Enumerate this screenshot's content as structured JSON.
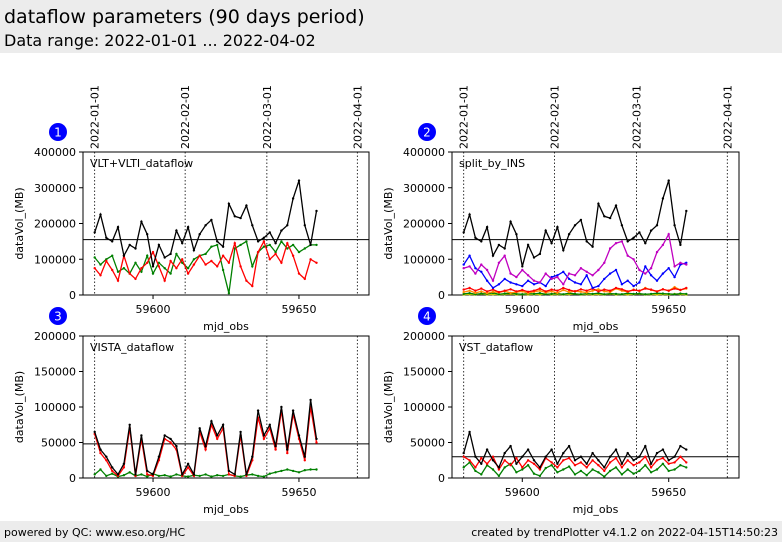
{
  "header": {
    "title": "dataflow parameters (90 days period)",
    "subtitle": "Data range: 2022-01-01 ... 2022-04-02"
  },
  "footer": {
    "left": "powered by QC: www.eso.org/HC",
    "right": "created by trendPlotter v4.1.2 on 2022-04-15T14:50:23"
  },
  "colors": {
    "header_bg": "#ececec",
    "badge": "#0000ff",
    "series_black": "#000000",
    "series_red": "#ff0000",
    "series_green": "#008000",
    "series_blue": "#0000ff",
    "series_magenta": "#c000c0",
    "series_orange": "#ff8c00",
    "series_yellow": "#c8c800"
  },
  "chart_data": [
    {
      "type": "line",
      "panel": "1",
      "label": "VLT+VLTI_dataflow",
      "xlabel": "mjd_obs",
      "ylabel": "dataVol_(MB)",
      "xlim": [
        59576,
        59674
      ],
      "ylim": [
        0,
        400000
      ],
      "xticks": [
        59600,
        59650
      ],
      "yticks": [
        0,
        100000,
        200000,
        300000,
        400000
      ],
      "date_markers": [
        {
          "label": "2022-01-01",
          "x": 59580
        },
        {
          "label": "2022-02-01",
          "x": 59611
        },
        {
          "label": "2022-03-01",
          "x": 59639
        },
        {
          "label": "2022-04-01",
          "x": 59670
        }
      ],
      "reference_line": 155000,
      "series": [
        {
          "color": "#000000",
          "x_start": 59580,
          "step": 2,
          "values": [
            175000,
            225000,
            160000,
            150000,
            190000,
            110000,
            140000,
            130000,
            205000,
            170000,
            80000,
            140000,
            105000,
            115000,
            180000,
            145000,
            190000,
            125000,
            170000,
            195000,
            210000,
            150000,
            135000,
            255000,
            220000,
            215000,
            250000,
            195000,
            150000,
            160000,
            175000,
            145000,
            180000,
            195000,
            270000,
            320000,
            195000,
            140000,
            235000
          ]
        },
        {
          "color": "#ff0000",
          "x_start": 59580,
          "step": 2,
          "values": [
            75000,
            55000,
            95000,
            70000,
            40000,
            110000,
            60000,
            45000,
            75000,
            90000,
            120000,
            80000,
            40000,
            95000,
            75000,
            100000,
            60000,
            85000,
            110000,
            85000,
            95000,
            80000,
            110000,
            90000,
            145000,
            80000,
            40000,
            25000,
            120000,
            150000,
            100000,
            115000,
            90000,
            145000,
            110000,
            60000,
            45000,
            100000,
            90000
          ]
        },
        {
          "color": "#008000",
          "x_start": 59580,
          "step": 2,
          "values": [
            105000,
            85000,
            100000,
            110000,
            65000,
            75000,
            60000,
            90000,
            65000,
            110000,
            60000,
            90000,
            75000,
            60000,
            115000,
            90000,
            75000,
            100000,
            110000,
            115000,
            135000,
            140000,
            70000,
            5000,
            130000,
            140000,
            150000,
            80000,
            120000,
            135000,
            140000,
            120000,
            150000,
            130000,
            140000,
            120000,
            130000,
            140000,
            140000
          ]
        }
      ]
    },
    {
      "type": "line",
      "panel": "2",
      "label": "split_by_INS",
      "xlabel": "mjd_obs",
      "ylabel": "dataVol_(MB)",
      "xlim": [
        59576,
        59674
      ],
      "ylim": [
        0,
        400000
      ],
      "xticks": [
        59600,
        59650
      ],
      "yticks": [
        0,
        100000,
        200000,
        300000,
        400000
      ],
      "date_markers": [
        {
          "label": "2022-01-01",
          "x": 59580
        },
        {
          "label": "2022-02-01",
          "x": 59611
        },
        {
          "label": "2022-03-01",
          "x": 59639
        },
        {
          "label": "2022-04-01",
          "x": 59670
        }
      ],
      "reference_line": 155000,
      "series": [
        {
          "color": "#000000",
          "x_start": 59580,
          "step": 2,
          "values": [
            175000,
            225000,
            160000,
            150000,
            190000,
            110000,
            140000,
            130000,
            205000,
            170000,
            80000,
            140000,
            105000,
            115000,
            180000,
            145000,
            190000,
            125000,
            170000,
            195000,
            210000,
            150000,
            135000,
            255000,
            220000,
            215000,
            250000,
            195000,
            150000,
            160000,
            175000,
            145000,
            180000,
            195000,
            270000,
            320000,
            195000,
            140000,
            235000
          ]
        },
        {
          "color": "#c000c0",
          "x_start": 59580,
          "step": 2,
          "values": [
            75000,
            80000,
            60000,
            85000,
            70000,
            40000,
            90000,
            110000,
            60000,
            50000,
            70000,
            55000,
            40000,
            35000,
            60000,
            45000,
            50000,
            30000,
            60000,
            55000,
            75000,
            65000,
            55000,
            70000,
            90000,
            130000,
            145000,
            150000,
            110000,
            100000,
            70000,
            60000,
            75000,
            120000,
            140000,
            170000,
            80000,
            90000,
            85000
          ]
        },
        {
          "color": "#0000ff",
          "x_start": 59580,
          "step": 2,
          "values": [
            85000,
            110000,
            75000,
            65000,
            40000,
            20000,
            30000,
            45000,
            35000,
            30000,
            25000,
            40000,
            30000,
            35000,
            25000,
            50000,
            55000,
            65000,
            45000,
            35000,
            30000,
            55000,
            20000,
            25000,
            45000,
            60000,
            70000,
            30000,
            40000,
            25000,
            35000,
            80000,
            55000,
            40000,
            60000,
            75000,
            50000,
            85000,
            90000
          ]
        },
        {
          "color": "#ff0000",
          "x_start": 59580,
          "step": 2,
          "values": [
            15000,
            20000,
            12000,
            18000,
            10000,
            15000,
            8000,
            12000,
            16000,
            10000,
            14000,
            9000,
            12000,
            18000,
            10000,
            15000,
            12000,
            20000,
            14000,
            10000,
            16000,
            12000,
            18000,
            10000,
            15000,
            12000,
            20000,
            16000,
            10000,
            14000,
            12000,
            18000,
            15000,
            10000,
            16000,
            12000,
            18000,
            14000,
            20000
          ]
        },
        {
          "color": "#ff8c00",
          "x_start": 59580,
          "step": 2,
          "values": [
            8000,
            12000,
            6000,
            10000,
            5000,
            9000,
            7000,
            11000,
            6000,
            8000,
            10000,
            5000,
            9000,
            12000,
            7000,
            10000,
            6000,
            14000,
            8000,
            11000,
            9000,
            7000,
            12000,
            16000,
            10000,
            8000,
            18000,
            12000,
            9000,
            15000,
            11000,
            20000,
            14000,
            10000,
            16000,
            12000,
            22000,
            14000,
            18000
          ]
        },
        {
          "color": "#008000",
          "x_start": 59580,
          "step": 2,
          "values": [
            3000,
            5000,
            2000,
            4000,
            3000,
            6000,
            2000,
            4000,
            5000,
            3000,
            2000,
            4000,
            3000,
            5000,
            2000,
            3000,
            4000,
            2000,
            5000,
            3000,
            2000,
            4000,
            3000,
            5000,
            2000,
            4000,
            3000,
            2000,
            5000,
            3000,
            4000,
            2000,
            3000,
            5000,
            4000,
            3000,
            2000,
            4000,
            3000
          ]
        },
        {
          "color": "#c8c800",
          "x_start": 59580,
          "step": 2,
          "values": [
            1000,
            2000,
            1000,
            3000,
            1000,
            2000,
            1000,
            2000,
            3000,
            1000,
            2000,
            1000,
            2000,
            1000,
            3000,
            1000,
            2000,
            1000,
            2000,
            3000,
            1000,
            2000,
            1000,
            2000,
            1000,
            3000,
            1000,
            2000,
            1000,
            2000,
            3000,
            1000,
            2000,
            1000,
            2000,
            1000,
            3000,
            2000,
            1000
          ]
        }
      ]
    },
    {
      "type": "line",
      "panel": "3",
      "label": "VISTA_dataflow",
      "xlabel": "mjd_obs",
      "ylabel": "dataVol_(MB)",
      "xlim": [
        59576,
        59674
      ],
      "ylim": [
        0,
        200000
      ],
      "xticks": [
        59600,
        59650
      ],
      "yticks": [
        0,
        50000,
        100000,
        150000,
        200000
      ],
      "date_markers": [
        {
          "x": 59580
        },
        {
          "x": 59611
        },
        {
          "x": 59639
        },
        {
          "x": 59670
        }
      ],
      "reference_line": 48000,
      "series": [
        {
          "color": "#000000",
          "x_start": 59580,
          "step": 2,
          "values": [
            65000,
            40000,
            30000,
            15000,
            5000,
            20000,
            75000,
            5000,
            60000,
            10000,
            5000,
            30000,
            60000,
            55000,
            45000,
            5000,
            20000,
            5000,
            70000,
            45000,
            80000,
            60000,
            75000,
            10000,
            5000,
            65000,
            5000,
            30000,
            95000,
            60000,
            75000,
            45000,
            100000,
            40000,
            95000,
            60000,
            30000,
            110000,
            55000
          ]
        },
        {
          "color": "#ff0000",
          "x_start": 59580,
          "step": 2,
          "values": [
            62000,
            35000,
            25000,
            10000,
            3000,
            15000,
            70000,
            3000,
            55000,
            5000,
            3000,
            25000,
            55000,
            50000,
            40000,
            3000,
            15000,
            3000,
            65000,
            40000,
            75000,
            55000,
            70000,
            5000,
            3000,
            60000,
            3000,
            25000,
            85000,
            55000,
            70000,
            40000,
            95000,
            35000,
            90000,
            55000,
            25000,
            100000,
            50000
          ]
        },
        {
          "color": "#008000",
          "x_start": 59580,
          "step": 2,
          "values": [
            5000,
            12000,
            3000,
            6000,
            2000,
            4000,
            8000,
            3000,
            5000,
            2000,
            6000,
            3000,
            4000,
            2000,
            5000,
            3000,
            2000,
            4000,
            3000,
            5000,
            2000,
            4000,
            3000,
            5000,
            3000,
            2000,
            4000,
            5000,
            3000,
            2000,
            6000,
            8000,
            10000,
            12000,
            10000,
            8000,
            11000,
            12000,
            12000
          ]
        }
      ]
    },
    {
      "type": "line",
      "panel": "4",
      "label": "VST_dataflow",
      "xlabel": "mjd_obs",
      "ylabel": "dataVol_(MB)",
      "xlim": [
        59576,
        59674
      ],
      "ylim": [
        0,
        200000
      ],
      "xticks": [
        59600,
        59650
      ],
      "yticks": [
        0,
        50000,
        100000,
        150000,
        200000
      ],
      "date_markers": [
        {
          "x": 59580
        },
        {
          "x": 59611
        },
        {
          "x": 59639
        },
        {
          "x": 59670
        }
      ],
      "reference_line": 30000,
      "series": [
        {
          "color": "#000000",
          "x_start": 59580,
          "step": 2,
          "values": [
            35000,
            65000,
            30000,
            20000,
            40000,
            25000,
            15000,
            35000,
            45000,
            20000,
            30000,
            40000,
            25000,
            15000,
            30000,
            40000,
            20000,
            35000,
            45000,
            25000,
            30000,
            20000,
            35000,
            25000,
            15000,
            30000,
            40000,
            20000,
            35000,
            25000,
            30000,
            45000,
            20000,
            35000,
            40000,
            25000,
            30000,
            45000,
            40000
          ]
        },
        {
          "color": "#ff0000",
          "x_start": 59580,
          "step": 2,
          "values": [
            30000,
            25000,
            15000,
            28000,
            20000,
            30000,
            12000,
            25000,
            18000,
            28000,
            15000,
            25000,
            20000,
            12000,
            28000,
            22000,
            15000,
            25000,
            28000,
            18000,
            22000,
            15000,
            25000,
            18000,
            10000,
            22000,
            28000,
            15000,
            25000,
            18000,
            22000,
            30000,
            15000,
            25000,
            28000,
            20000,
            22000,
            30000,
            22000
          ]
        },
        {
          "color": "#008000",
          "x_start": 59580,
          "step": 2,
          "values": [
            15000,
            22000,
            10000,
            5000,
            18000,
            12000,
            3000,
            15000,
            20000,
            8000,
            12000,
            18000,
            6000,
            3000,
            14000,
            18000,
            8000,
            12000,
            16000,
            5000,
            10000,
            4000,
            12000,
            8000,
            2000,
            10000,
            15000,
            5000,
            12000,
            6000,
            10000,
            18000,
            8000,
            12000,
            20000,
            10000,
            12000,
            18000,
            15000
          ]
        }
      ]
    }
  ]
}
